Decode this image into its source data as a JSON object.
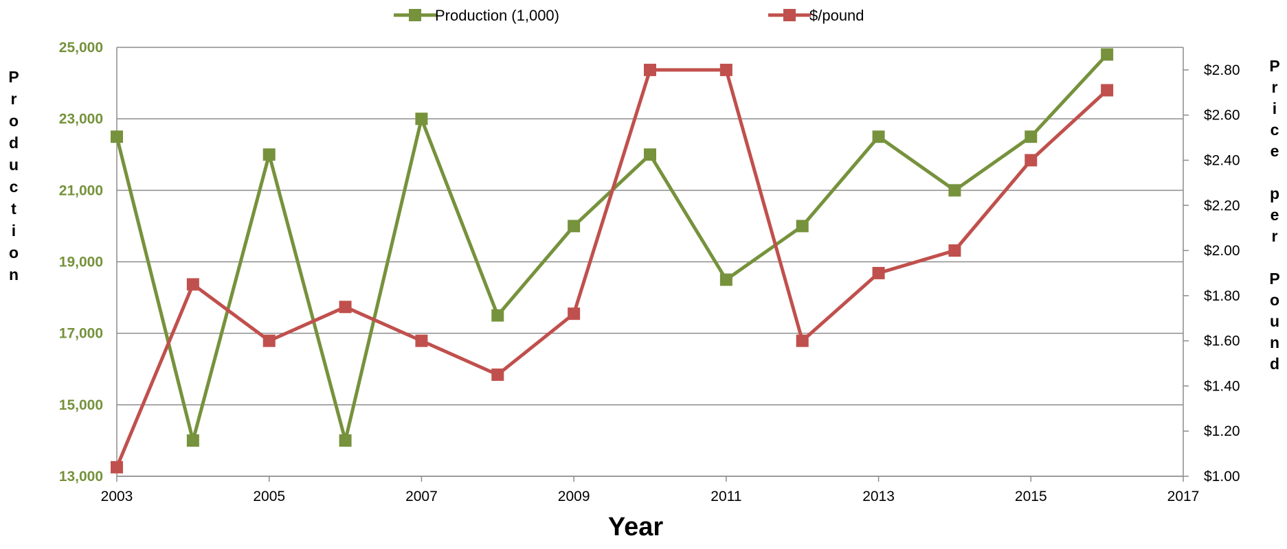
{
  "chart_data": {
    "type": "line",
    "title": "",
    "xlabel": "Year",
    "ylabel": "Production",
    "y2label": "Price per Pound",
    "xlim": [
      2003,
      2017
    ],
    "xticks": [
      "2003",
      "2005",
      "2007",
      "2009",
      "2011",
      "2013",
      "2015",
      "2017"
    ],
    "ylim": [
      13000,
      25000
    ],
    "yticks": [
      "13,000",
      "15,000",
      "17,000",
      "19,000",
      "21,000",
      "23,000",
      "25,000"
    ],
    "y2lim": [
      1.0,
      2.9
    ],
    "y2ticks": [
      "$1.00",
      "$1.20",
      "$1.40",
      "$1.60",
      "$1.80",
      "$2.00",
      "$2.20",
      "$2.40",
      "$2.60",
      "$2.80"
    ],
    "grid": true,
    "legend": "top-center",
    "series": [
      {
        "name": "Production (1,000)",
        "axis": "left",
        "color": "#76923c",
        "x": [
          2003,
          2004,
          2005,
          2006,
          2007,
          2008,
          2009,
          2010,
          2011,
          2012,
          2013,
          2014,
          2015,
          2016
        ],
        "values": [
          22500,
          14000,
          22000,
          14000,
          23000,
          17500,
          20000,
          22000,
          18500,
          20000,
          22500,
          21000,
          22500,
          24800
        ]
      },
      {
        "name": "$/pound",
        "axis": "right",
        "color": "#c0504d",
        "x": [
          2003,
          2004,
          2005,
          2006,
          2007,
          2008,
          2009,
          2010,
          2011,
          2012,
          2013,
          2014,
          2015,
          2016
        ],
        "values": [
          1.04,
          1.85,
          1.6,
          1.75,
          1.6,
          1.45,
          1.72,
          2.8,
          2.8,
          1.6,
          1.9,
          2.0,
          2.4,
          2.71
        ]
      }
    ]
  }
}
